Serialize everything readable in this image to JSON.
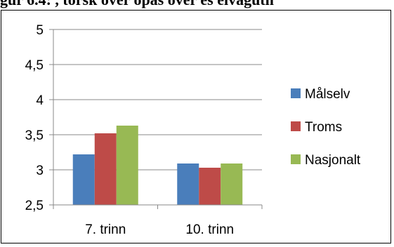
{
  "header": {
    "title_fragment": "gur 6.4: , torsk over opas over es elvaguth"
  },
  "chart_data": {
    "type": "bar",
    "title": "",
    "xlabel": "",
    "ylabel": "",
    "ylim": [
      2.5,
      5
    ],
    "yticks": [
      "5",
      "4,5",
      "4",
      "3,5",
      "3",
      "2,5"
    ],
    "ytick_values": [
      5,
      4.5,
      4,
      3.5,
      3,
      2.5
    ],
    "categories": [
      "7. trinn",
      "10. trinn"
    ],
    "series": [
      {
        "name": "Målselv",
        "color": "#4a7ebb",
        "values": [
          3.22,
          3.09
        ]
      },
      {
        "name": "Troms",
        "color": "#be4b48",
        "values": [
          3.52,
          3.03
        ]
      },
      {
        "name": "Nasjonalt",
        "color": "#98b954",
        "values": [
          3.63,
          3.09
        ]
      }
    ],
    "grid": true,
    "legend_position": "right"
  }
}
